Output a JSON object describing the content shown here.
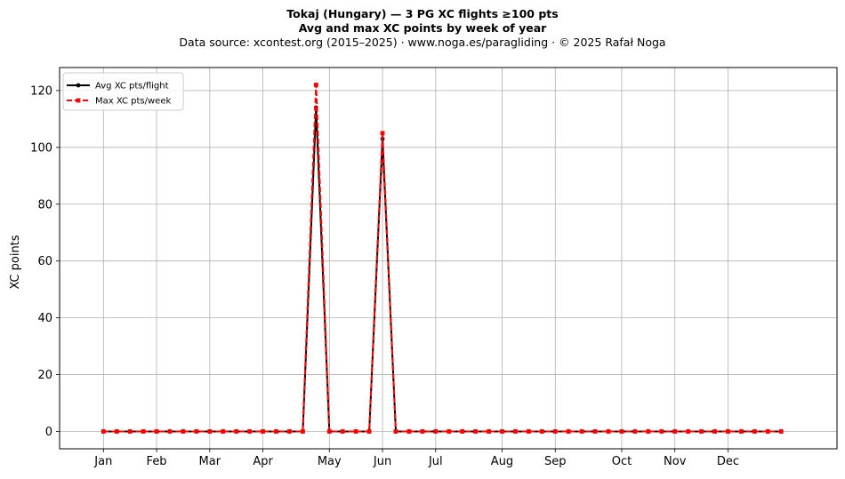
{
  "figure": {
    "title_line1": "Tokaj (Hungary)  —  3 PG XC flights ≥100 pts",
    "title_line2": "Avg and max XC points by week of year",
    "title_line3": "Data source: xcontest.org (2015–2025)  ·  www.noga.es/paragliding  ·  © 2025 Rafał Noga"
  },
  "chart_data": {
    "type": "line",
    "xlabel": "",
    "ylabel": "XC points",
    "x_unit": "week of year",
    "xlim": [
      -2.3,
      56.2
    ],
    "ylim": [
      -6.1,
      128.1
    ],
    "grid": true,
    "legend_position": "top-left",
    "x_ticks": [
      {
        "week": 1,
        "label": "Jan"
      },
      {
        "week": 5,
        "label": "Feb"
      },
      {
        "week": 9,
        "label": "Mar"
      },
      {
        "week": 13,
        "label": "Apr"
      },
      {
        "week": 18,
        "label": "May"
      },
      {
        "week": 22,
        "label": "Jun"
      },
      {
        "week": 26,
        "label": "Jul"
      },
      {
        "week": 31,
        "label": "Aug"
      },
      {
        "week": 35,
        "label": "Sep"
      },
      {
        "week": 40,
        "label": "Oct"
      },
      {
        "week": 44,
        "label": "Nov"
      },
      {
        "week": 48,
        "label": "Dec"
      }
    ],
    "y_ticks": [
      0,
      20,
      40,
      60,
      80,
      100,
      120
    ],
    "x": [
      1,
      2,
      3,
      4,
      5,
      6,
      7,
      8,
      9,
      10,
      11,
      12,
      13,
      14,
      15,
      16,
      17,
      18,
      19,
      20,
      21,
      22,
      23,
      24,
      25,
      26,
      27,
      28,
      29,
      30,
      31,
      32,
      33,
      34,
      35,
      36,
      37,
      38,
      39,
      40,
      41,
      42,
      43,
      44,
      45,
      46,
      47,
      48,
      49,
      50,
      51,
      52
    ],
    "series": [
      {
        "name": "Avg XC pts/flight",
        "color": "#000000",
        "style": "solid",
        "marker": "circle",
        "values": [
          0,
          0,
          0,
          0,
          0,
          0,
          0,
          0,
          0,
          0,
          0,
          0,
          0,
          0,
          0,
          0,
          114,
          0,
          0,
          0,
          0,
          103,
          0,
          0,
          0,
          0,
          0,
          0,
          0,
          0,
          0,
          0,
          0,
          0,
          0,
          0,
          0,
          0,
          0,
          0,
          0,
          0,
          0,
          0,
          0,
          0,
          0,
          0,
          0,
          0,
          0,
          0
        ]
      },
      {
        "name": "Max XC pts/week",
        "color": "#ff0000",
        "style": "dashed",
        "marker": "square",
        "values": [
          0,
          0,
          0,
          0,
          0,
          0,
          0,
          0,
          0,
          0,
          0,
          0,
          0,
          0,
          0,
          0,
          122,
          0,
          0,
          0,
          0,
          105,
          0,
          0,
          0,
          0,
          0,
          0,
          0,
          0,
          0,
          0,
          0,
          0,
          0,
          0,
          0,
          0,
          0,
          0,
          0,
          0,
          0,
          0,
          0,
          0,
          0,
          0,
          0,
          0,
          0,
          0
        ]
      }
    ]
  }
}
